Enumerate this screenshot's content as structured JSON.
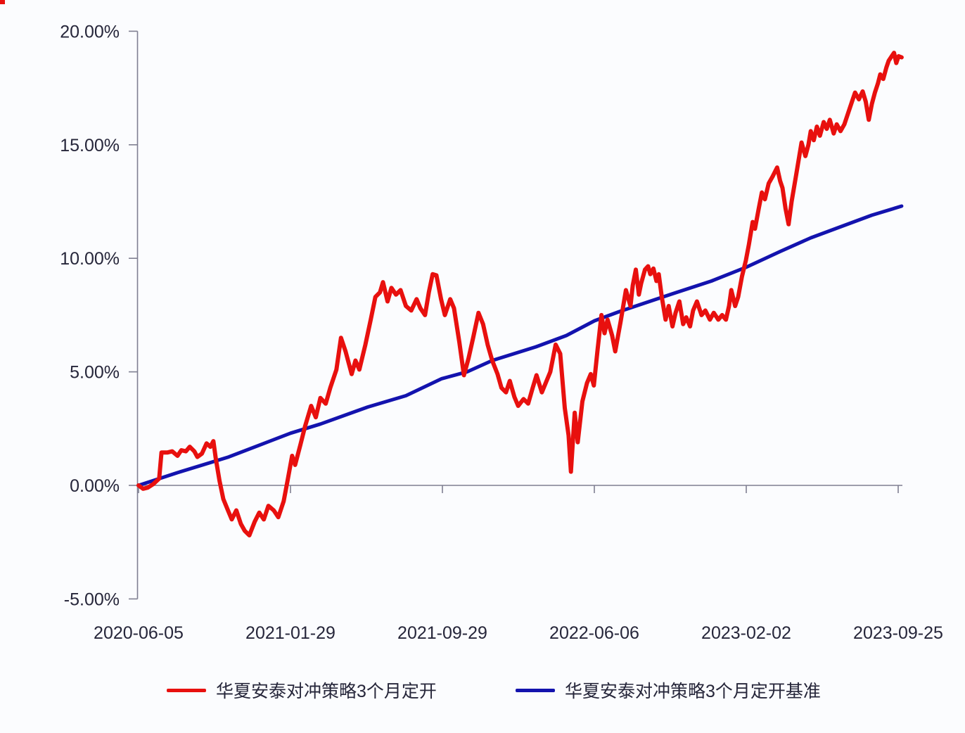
{
  "chart_data": {
    "type": "line",
    "title": "",
    "grid": false,
    "background": "#fbfcfe",
    "axis_color": "#7f7f91",
    "text_color": "#26263a",
    "x_axis": {
      "tick_labels": [
        "2020-06-05",
        "2021-01-29",
        "2021-09-29",
        "2022-06-06",
        "2023-02-02",
        "2023-09-25"
      ]
    },
    "y_axis": {
      "tick_labels": [
        "20.00%",
        "15.00%",
        "10.00%",
        "5.00%",
        "0.00%",
        "-5.00%"
      ],
      "tick_values": [
        20,
        15,
        10,
        5,
        0,
        -5
      ],
      "range": [
        -5,
        20
      ],
      "unit": "%"
    },
    "legend": {
      "position": "bottom",
      "entries": [
        "华夏安泰对冲策略3个月定开",
        "华夏安泰对冲策略3个月定开基准"
      ]
    },
    "x_encoding": "fraction 0-1 of timeline from 2020-06-05 to 2023-09-25, y in percent",
    "series": [
      {
        "name": "华夏安泰对冲策略3个月定开",
        "color": "#e8100e",
        "points": [
          [
            0.0,
            0.0
          ],
          [
            0.006,
            -0.15
          ],
          [
            0.012,
            -0.1
          ],
          [
            0.019,
            0.05
          ],
          [
            0.027,
            0.3
          ],
          [
            0.03,
            1.45
          ],
          [
            0.038,
            1.45
          ],
          [
            0.044,
            1.5
          ],
          [
            0.051,
            1.3
          ],
          [
            0.056,
            1.55
          ],
          [
            0.062,
            1.5
          ],
          [
            0.067,
            1.7
          ],
          [
            0.073,
            1.5
          ],
          [
            0.077,
            1.25
          ],
          [
            0.083,
            1.4
          ],
          [
            0.089,
            1.85
          ],
          [
            0.094,
            1.7
          ],
          [
            0.098,
            1.95
          ],
          [
            0.101,
            1.2
          ],
          [
            0.106,
            0.2
          ],
          [
            0.111,
            -0.6
          ],
          [
            0.117,
            -1.1
          ],
          [
            0.122,
            -1.5
          ],
          [
            0.128,
            -1.1
          ],
          [
            0.134,
            -1.7
          ],
          [
            0.139,
            -2.0
          ],
          [
            0.145,
            -2.2
          ],
          [
            0.152,
            -1.6
          ],
          [
            0.158,
            -1.2
          ],
          [
            0.164,
            -1.5
          ],
          [
            0.17,
            -0.9
          ],
          [
            0.177,
            -1.1
          ],
          [
            0.183,
            -1.4
          ],
          [
            0.19,
            -0.7
          ],
          [
            0.195,
            0.2
          ],
          [
            0.201,
            1.3
          ],
          [
            0.205,
            0.9
          ],
          [
            0.212,
            1.8
          ],
          [
            0.218,
            2.6
          ],
          [
            0.226,
            3.5
          ],
          [
            0.232,
            3.0
          ],
          [
            0.238,
            3.85
          ],
          [
            0.245,
            3.6
          ],
          [
            0.251,
            4.3
          ],
          [
            0.259,
            5.1
          ],
          [
            0.265,
            6.5
          ],
          [
            0.271,
            5.9
          ],
          [
            0.279,
            4.9
          ],
          [
            0.284,
            5.5
          ],
          [
            0.289,
            5.1
          ],
          [
            0.297,
            6.2
          ],
          [
            0.304,
            7.3
          ],
          [
            0.31,
            8.3
          ],
          [
            0.316,
            8.5
          ],
          [
            0.32,
            8.95
          ],
          [
            0.326,
            8.1
          ],
          [
            0.331,
            8.7
          ],
          [
            0.337,
            8.4
          ],
          [
            0.343,
            8.6
          ],
          [
            0.35,
            7.9
          ],
          [
            0.357,
            7.7
          ],
          [
            0.364,
            8.2
          ],
          [
            0.369,
            7.8
          ],
          [
            0.375,
            7.5
          ],
          [
            0.38,
            8.5
          ],
          [
            0.385,
            9.3
          ],
          [
            0.39,
            9.25
          ],
          [
            0.396,
            8.2
          ],
          [
            0.401,
            7.5
          ],
          [
            0.408,
            8.2
          ],
          [
            0.413,
            7.8
          ],
          [
            0.42,
            6.3
          ],
          [
            0.426,
            4.85
          ],
          [
            0.432,
            5.6
          ],
          [
            0.438,
            6.5
          ],
          [
            0.445,
            7.6
          ],
          [
            0.451,
            7.1
          ],
          [
            0.457,
            6.2
          ],
          [
            0.463,
            5.5
          ],
          [
            0.47,
            4.9
          ],
          [
            0.475,
            4.3
          ],
          [
            0.481,
            4.1
          ],
          [
            0.486,
            4.6
          ],
          [
            0.492,
            3.9
          ],
          [
            0.497,
            3.5
          ],
          [
            0.504,
            3.8
          ],
          [
            0.51,
            3.6
          ],
          [
            0.516,
            4.3
          ],
          [
            0.521,
            4.85
          ],
          [
            0.528,
            4.1
          ],
          [
            0.539,
            5.0
          ],
          [
            0.546,
            6.2
          ],
          [
            0.552,
            5.8
          ],
          [
            0.558,
            3.4
          ],
          [
            0.563,
            2.2
          ],
          [
            0.566,
            0.6
          ],
          [
            0.571,
            3.2
          ],
          [
            0.575,
            1.9
          ],
          [
            0.581,
            3.7
          ],
          [
            0.587,
            4.5
          ],
          [
            0.592,
            4.9
          ],
          [
            0.596,
            4.4
          ],
          [
            0.601,
            6.0
          ],
          [
            0.606,
            7.5
          ],
          [
            0.61,
            6.7
          ],
          [
            0.614,
            7.3
          ],
          [
            0.62,
            6.6
          ],
          [
            0.624,
            5.9
          ],
          [
            0.631,
            7.2
          ],
          [
            0.638,
            8.6
          ],
          [
            0.644,
            7.9
          ],
          [
            0.647,
            8.8
          ],
          [
            0.651,
            9.5
          ],
          [
            0.655,
            8.4
          ],
          [
            0.658,
            8.9
          ],
          [
            0.663,
            9.5
          ],
          [
            0.667,
            9.65
          ],
          [
            0.67,
            9.3
          ],
          [
            0.674,
            9.55
          ],
          [
            0.678,
            9.0
          ],
          [
            0.681,
            9.3
          ],
          [
            0.685,
            8.3
          ],
          [
            0.69,
            7.3
          ],
          [
            0.694,
            7.9
          ],
          [
            0.699,
            7.0
          ],
          [
            0.703,
            7.6
          ],
          [
            0.708,
            8.1
          ],
          [
            0.713,
            7.1
          ],
          [
            0.717,
            7.4
          ],
          [
            0.722,
            7.0
          ],
          [
            0.726,
            7.7
          ],
          [
            0.731,
            8.1
          ],
          [
            0.737,
            7.5
          ],
          [
            0.742,
            7.7
          ],
          [
            0.748,
            7.3
          ],
          [
            0.753,
            7.6
          ],
          [
            0.759,
            7.3
          ],
          [
            0.764,
            7.5
          ],
          [
            0.769,
            7.3
          ],
          [
            0.773,
            7.9
          ],
          [
            0.776,
            8.6
          ],
          [
            0.781,
            7.9
          ],
          [
            0.785,
            8.3
          ],
          [
            0.79,
            9.2
          ],
          [
            0.795,
            9.9
          ],
          [
            0.799,
            10.6
          ],
          [
            0.804,
            11.6
          ],
          [
            0.807,
            11.3
          ],
          [
            0.812,
            12.2
          ],
          [
            0.816,
            12.9
          ],
          [
            0.82,
            12.6
          ],
          [
            0.825,
            13.3
          ],
          [
            0.83,
            13.6
          ],
          [
            0.836,
            14.0
          ],
          [
            0.84,
            13.4
          ],
          [
            0.843,
            13.1
          ],
          [
            0.847,
            12.2
          ],
          [
            0.851,
            11.5
          ],
          [
            0.855,
            12.5
          ],
          [
            0.86,
            13.5
          ],
          [
            0.865,
            14.5
          ],
          [
            0.868,
            15.1
          ],
          [
            0.873,
            14.5
          ],
          [
            0.877,
            15.0
          ],
          [
            0.88,
            15.6
          ],
          [
            0.884,
            15.2
          ],
          [
            0.888,
            15.8
          ],
          [
            0.892,
            15.4
          ],
          [
            0.897,
            16.0
          ],
          [
            0.901,
            15.7
          ],
          [
            0.905,
            16.1
          ],
          [
            0.91,
            15.5
          ],
          [
            0.914,
            15.9
          ],
          [
            0.919,
            15.6
          ],
          [
            0.924,
            15.9
          ],
          [
            0.929,
            16.4
          ],
          [
            0.934,
            16.9
          ],
          [
            0.938,
            17.3
          ],
          [
            0.943,
            17.0
          ],
          [
            0.948,
            17.35
          ],
          [
            0.952,
            16.9
          ],
          [
            0.956,
            16.1
          ],
          [
            0.96,
            16.8
          ],
          [
            0.964,
            17.3
          ],
          [
            0.968,
            17.7
          ],
          [
            0.971,
            18.1
          ],
          [
            0.975,
            17.9
          ],
          [
            0.979,
            18.4
          ],
          [
            0.982,
            18.7
          ],
          [
            0.986,
            18.9
          ],
          [
            0.989,
            19.05
          ],
          [
            0.992,
            18.6
          ],
          [
            0.995,
            18.9
          ],
          [
            0.999,
            18.85
          ]
        ]
      },
      {
        "name": "华夏安泰对冲策略3个月定开基准",
        "color": "#1313ae",
        "points": [
          [
            0.0,
            0.0
          ],
          [
            0.05,
            0.55
          ],
          [
            0.118,
            1.25
          ],
          [
            0.199,
            2.3
          ],
          [
            0.238,
            2.7
          ],
          [
            0.3,
            3.45
          ],
          [
            0.35,
            3.95
          ],
          [
            0.397,
            4.7
          ],
          [
            0.43,
            5.0
          ],
          [
            0.463,
            5.5
          ],
          [
            0.52,
            6.1
          ],
          [
            0.56,
            6.6
          ],
          [
            0.597,
            7.25
          ],
          [
            0.629,
            7.65
          ],
          [
            0.66,
            8.0
          ],
          [
            0.7,
            8.45
          ],
          [
            0.75,
            9.0
          ],
          [
            0.795,
            9.6
          ],
          [
            0.84,
            10.3
          ],
          [
            0.88,
            10.9
          ],
          [
            0.92,
            11.4
          ],
          [
            0.96,
            11.9
          ],
          [
            0.999,
            12.3
          ]
        ]
      }
    ]
  },
  "colors": {
    "fund_line": "#e8100e",
    "benchmark_line": "#1313ae",
    "axis": "#7f7f91",
    "tick_text": "#26263a",
    "background": "#fbfcfe"
  }
}
